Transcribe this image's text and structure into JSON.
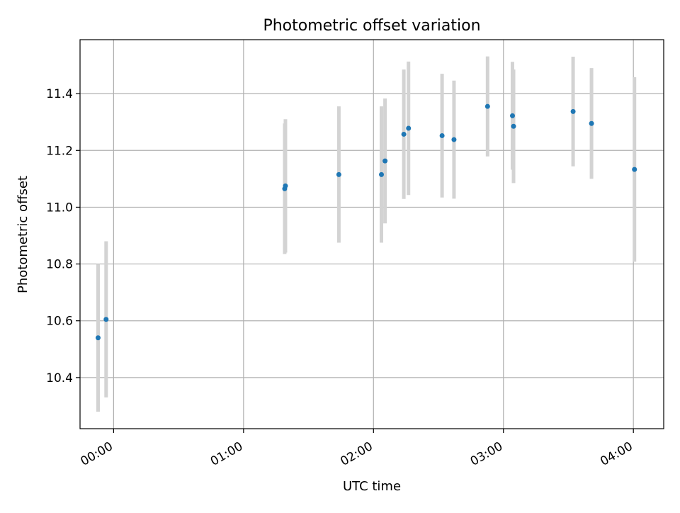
{
  "chart_data": {
    "type": "scatter",
    "title": "Photometric offset variation",
    "xlabel": "UTC time",
    "ylabel": "Photometric offset",
    "xlim": [
      "-00:15:30",
      "04:14:00"
    ],
    "ylim": [
      10.22,
      11.59
    ],
    "x_ticks": [
      "00:00",
      "01:00",
      "02:00",
      "03:00",
      "04:00"
    ],
    "y_ticks": [
      "10.4",
      "10.6",
      "10.8",
      "11.0",
      "11.2",
      "11.4"
    ],
    "grid": true,
    "colors": {
      "point": "#1f77b4",
      "errorbar": "#d3d3d3",
      "grid": "#b0b0b0"
    },
    "points": [
      {
        "x": "-00:07:10",
        "y": 10.54,
        "err": 0.26
      },
      {
        "x": "-00:03:28",
        "y": 10.605,
        "err": 0.275
      },
      {
        "x": "01:19:00",
        "y": 11.065,
        "err": 0.23
      },
      {
        "x": "01:19:20",
        "y": 11.075,
        "err": 0.235
      },
      {
        "x": "01:44:00",
        "y": 11.115,
        "err": 0.24
      },
      {
        "x": "02:03:40",
        "y": 11.115,
        "err": 0.24
      },
      {
        "x": "02:05:20",
        "y": 11.163,
        "err": 0.22
      },
      {
        "x": "02:14:00",
        "y": 11.257,
        "err": 0.228
      },
      {
        "x": "02:16:10",
        "y": 11.278,
        "err": 0.235
      },
      {
        "x": "02:31:40",
        "y": 11.252,
        "err": 0.218
      },
      {
        "x": "02:37:10",
        "y": 11.238,
        "err": 0.208
      },
      {
        "x": "02:52:40",
        "y": 11.355,
        "err": 0.176
      },
      {
        "x": "03:04:10",
        "y": 11.322,
        "err": 0.19
      },
      {
        "x": "03:04:40",
        "y": 11.285,
        "err": 0.2
      },
      {
        "x": "03:32:10",
        "y": 11.337,
        "err": 0.193
      },
      {
        "x": "03:40:40",
        "y": 11.295,
        "err": 0.195
      },
      {
        "x": "04:00:30",
        "y": 11.133,
        "err": 0.325
      }
    ]
  }
}
